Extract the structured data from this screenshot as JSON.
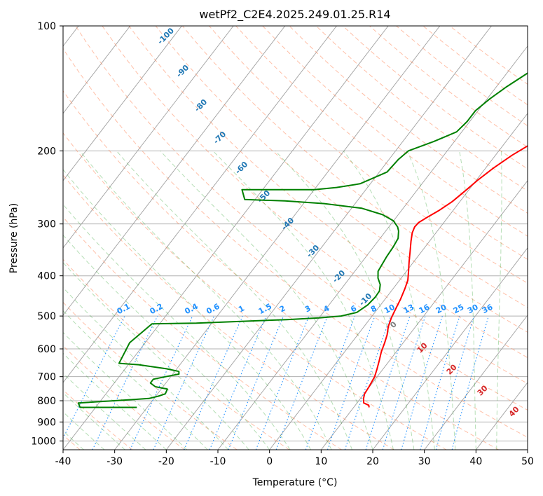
{
  "chart_data": {
    "type": "line",
    "title": "wetPf2_C2E4.2025.249.01.25.R14",
    "xlabel": "Temperature (°C)",
    "ylabel": "Pressure (hPa)",
    "xlim": [
      -40,
      50
    ],
    "ylim": [
      1050,
      100
    ],
    "y_scale": "log",
    "x_ticks": [
      "-40",
      "-30",
      "-20",
      "-10",
      "0",
      "10",
      "20",
      "30",
      "40",
      "50"
    ],
    "y_ticks": [
      "100",
      "200",
      "300",
      "400",
      "500",
      "600",
      "700",
      "800",
      "900",
      "1000"
    ],
    "grid": true,
    "series": [
      {
        "role": "temperature",
        "color": "#ff0000",
        "points": [
          [
            830,
            13.0
          ],
          [
            820,
            12.6
          ],
          [
            810,
            11.3
          ],
          [
            790,
            10.6
          ],
          [
            770,
            10.1
          ],
          [
            740,
            9.9
          ],
          [
            700,
            9.5
          ],
          [
            670,
            8.8
          ],
          [
            640,
            8.0
          ],
          [
            610,
            7.1
          ],
          [
            580,
            6.4
          ],
          [
            555,
            5.7
          ],
          [
            530,
            4.7
          ],
          [
            505,
            4.0
          ],
          [
            480,
            3.5
          ],
          [
            455,
            3.0
          ],
          [
            430,
            2.3
          ],
          [
            410,
            1.6
          ],
          [
            390,
            0.4
          ],
          [
            370,
            -0.9
          ],
          [
            350,
            -2.2
          ],
          [
            330,
            -3.6
          ],
          [
            315,
            -4.6
          ],
          [
            305,
            -5.0
          ],
          [
            298,
            -4.9
          ],
          [
            288,
            -3.9
          ],
          [
            278,
            -2.7
          ],
          [
            265,
            -1.5
          ],
          [
            250,
            -0.6
          ],
          [
            235,
            0.3
          ],
          [
            220,
            1.5
          ],
          [
            205,
            3.2
          ],
          [
            190,
            5.6
          ],
          [
            175,
            7.7
          ],
          [
            160,
            9.3
          ],
          [
            145,
            10.2
          ],
          [
            130,
            10.5
          ],
          [
            122,
            11.3
          ],
          [
            115,
            13.2
          ],
          [
            108,
            15.6
          ],
          [
            100,
            17.3
          ]
        ]
      },
      {
        "role": "dewpoint",
        "color": "#008000",
        "points": [
          [
            830,
            -32
          ],
          [
            830,
            -43
          ],
          [
            810,
            -44
          ],
          [
            795,
            -34
          ],
          [
            790,
            -31
          ],
          [
            780,
            -29.5
          ],
          [
            770,
            -28.5
          ],
          [
            750,
            -28.8
          ],
          [
            740,
            -31.5
          ],
          [
            725,
            -33
          ],
          [
            710,
            -33
          ],
          [
            700,
            -31
          ],
          [
            690,
            -28.8
          ],
          [
            680,
            -29.2
          ],
          [
            670,
            -32
          ],
          [
            655,
            -38
          ],
          [
            650,
            -42
          ],
          [
            580,
            -43
          ],
          [
            522,
            -41.5
          ],
          [
            520,
            -33
          ],
          [
            510,
            -16
          ],
          [
            505,
            -10
          ],
          [
            500,
            -6
          ],
          [
            490,
            -3.5
          ],
          [
            470,
            -2.5
          ],
          [
            450,
            -2.2
          ],
          [
            435,
            -2.3
          ],
          [
            420,
            -3.1
          ],
          [
            405,
            -4.5
          ],
          [
            390,
            -5.5
          ],
          [
            360,
            -6.0
          ],
          [
            340,
            -6.2
          ],
          [
            325,
            -6.5
          ],
          [
            312,
            -7.5
          ],
          [
            305,
            -8.3
          ],
          [
            295,
            -10
          ],
          [
            285,
            -13
          ],
          [
            275,
            -18
          ],
          [
            268,
            -26
          ],
          [
            264,
            -34
          ],
          [
            262,
            -42
          ],
          [
            248,
            -44
          ],
          [
            248,
            -30
          ],
          [
            245,
            -26
          ],
          [
            240,
            -22
          ],
          [
            225,
            -18.5
          ],
          [
            210,
            -18.2
          ],
          [
            200,
            -17.5
          ],
          [
            190,
            -14
          ],
          [
            180,
            -11
          ],
          [
            170,
            -10.5
          ],
          [
            160,
            -10.5
          ],
          [
            150,
            -9.5
          ],
          [
            140,
            -8
          ],
          [
            130,
            -6
          ],
          [
            120,
            -3.5
          ],
          [
            110,
            -1
          ],
          [
            105,
            0.5
          ],
          [
            100,
            1.5
          ]
        ]
      }
    ],
    "reference_lines": {
      "isotherms_color": "#000000",
      "dry_adiabats_color": "#ff7f50",
      "dry_adiabat_labels": [
        "-100",
        "-90",
        "-80",
        "-70",
        "-60",
        "-50",
        "-40",
        "-30",
        "-20",
        "-10",
        "0",
        "10",
        "20",
        "30",
        "40"
      ],
      "moist_adiabats_color": "#2ca02c",
      "mixing_ratio_color": "#1e90ff",
      "mixing_ratio_labels": [
        "0.1",
        "0.2",
        "0.4",
        "0.6",
        "1",
        "1.5",
        "2",
        "3",
        "4",
        "6",
        "8",
        "10",
        "13",
        "16",
        "20",
        "25",
        "30",
        "36"
      ],
      "mixing_ratio_values_gkg": [
        0.1,
        0.2,
        0.4,
        0.6,
        1,
        1.5,
        2,
        3,
        4,
        6,
        8,
        10,
        13,
        16,
        20,
        25,
        30,
        36
      ]
    }
  }
}
